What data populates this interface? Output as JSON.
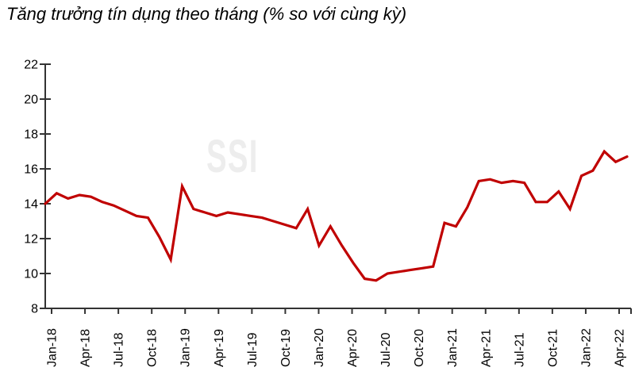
{
  "title": "Tăng trưởng tín dụng theo tháng (% so với cùng kỳ)",
  "watermark": "SSI",
  "colors": {
    "line": "#C00000",
    "axis": "#333333",
    "text": "#000000",
    "watermark": "#EDEDED",
    "background": "#FFFFFF"
  },
  "chart_data": {
    "type": "line",
    "title": "Tăng trưởng tín dụng theo tháng (% so với cùng kỳ)",
    "xlabel": "",
    "ylabel": "",
    "ylim": [
      8,
      22
    ],
    "y_ticks": [
      8,
      10,
      12,
      14,
      16,
      18,
      20,
      22
    ],
    "grid": false,
    "legend": null,
    "x_tick_labels": [
      "Jan-18",
      "Apr-18",
      "Jul-18",
      "Oct-18",
      "Jan-19",
      "Apr-19",
      "Jul-19",
      "Oct-19",
      "Jan-20",
      "Apr-20",
      "Jul-20",
      "Oct-20",
      "Jan-21",
      "Apr-21",
      "Jul-21",
      "Oct-21",
      "Jan-22",
      "Apr-22"
    ],
    "x": [
      "Jan-18",
      "Feb-18",
      "Mar-18",
      "Apr-18",
      "May-18",
      "Jun-18",
      "Jul-18",
      "Aug-18",
      "Sep-18",
      "Oct-18",
      "Nov-18",
      "Dec-18",
      "Jan-19",
      "Feb-19",
      "Mar-19",
      "Apr-19",
      "May-19",
      "Jun-19",
      "Jul-19",
      "Aug-19",
      "Sep-19",
      "Oct-19",
      "Nov-19",
      "Dec-19",
      "Jan-20",
      "Feb-20",
      "Mar-20",
      "Apr-20",
      "May-20",
      "Jun-20",
      "Jul-20",
      "Aug-20",
      "Sep-20",
      "Oct-20",
      "Nov-20",
      "Dec-20",
      "Jan-21",
      "Feb-21",
      "Mar-21",
      "Apr-21",
      "May-21",
      "Jun-21",
      "Jul-21",
      "Aug-21",
      "Sep-21",
      "Oct-21",
      "Nov-21",
      "Dec-21",
      "Jan-22",
      "Feb-22",
      "Mar-22",
      "Apr-22"
    ],
    "values": [
      14.0,
      14.6,
      14.3,
      14.5,
      14.4,
      14.1,
      13.9,
      13.6,
      13.3,
      13.2,
      12.1,
      10.8,
      15.0,
      13.7,
      13.5,
      13.3,
      13.5,
      13.4,
      13.3,
      13.2,
      13.0,
      12.8,
      12.6,
      13.7,
      11.6,
      12.7,
      11.6,
      10.6,
      9.7,
      9.6,
      10.0,
      10.1,
      10.2,
      10.3,
      10.4,
      12.9,
      12.7,
      13.8,
      15.3,
      15.4,
      15.2,
      15.3,
      15.2,
      14.1,
      14.1,
      14.7,
      13.7,
      15.6,
      15.9,
      17.0,
      16.4,
      16.7
    ]
  }
}
